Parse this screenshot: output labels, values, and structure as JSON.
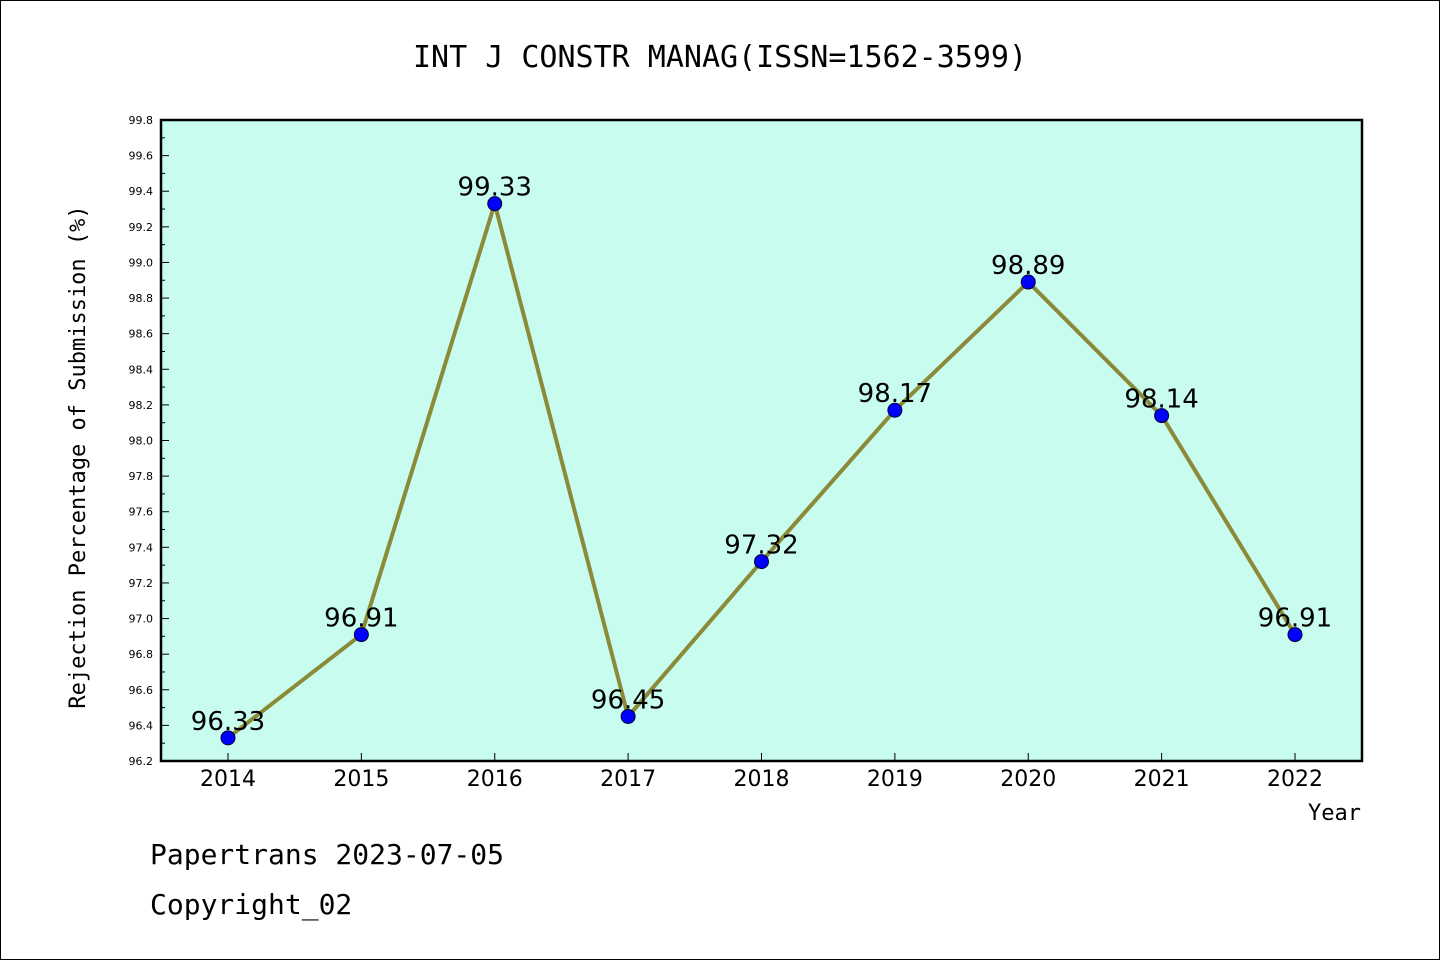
{
  "chart_data": {
    "type": "line",
    "title": "INT J CONSTR MANAG(ISSN=1562-3599)",
    "xlabel": "Year",
    "ylabel": "Rejection Percentage of Submission (%)",
    "categories": [
      "2014",
      "2015",
      "2016",
      "2017",
      "2018",
      "2019",
      "2020",
      "2021",
      "2022"
    ],
    "values": [
      96.33,
      96.91,
      99.33,
      96.45,
      97.32,
      98.17,
      98.89,
      98.14,
      96.91
    ],
    "data_labels": [
      "96.33",
      "96.91",
      "99.33",
      "96.45",
      "97.32",
      "98.17",
      "98.89",
      "98.14",
      "96.91"
    ],
    "ylim": [
      96.2,
      99.8
    ],
    "yticks": [
      "96.2",
      "96.4",
      "96.6",
      "96.8",
      "97.0",
      "97.2",
      "97.4",
      "97.6",
      "97.8",
      "98.0",
      "98.2",
      "98.4",
      "98.6",
      "98.8",
      "99.0",
      "99.2",
      "99.4",
      "99.6",
      "99.8"
    ],
    "grid": false,
    "colors": {
      "plot_background": "#c8fcee",
      "line": "#8b8a38",
      "marker": "#0000ff"
    }
  },
  "footer": {
    "line1": "Papertrans 2023-07-05",
    "line2": "Copyright_02"
  }
}
